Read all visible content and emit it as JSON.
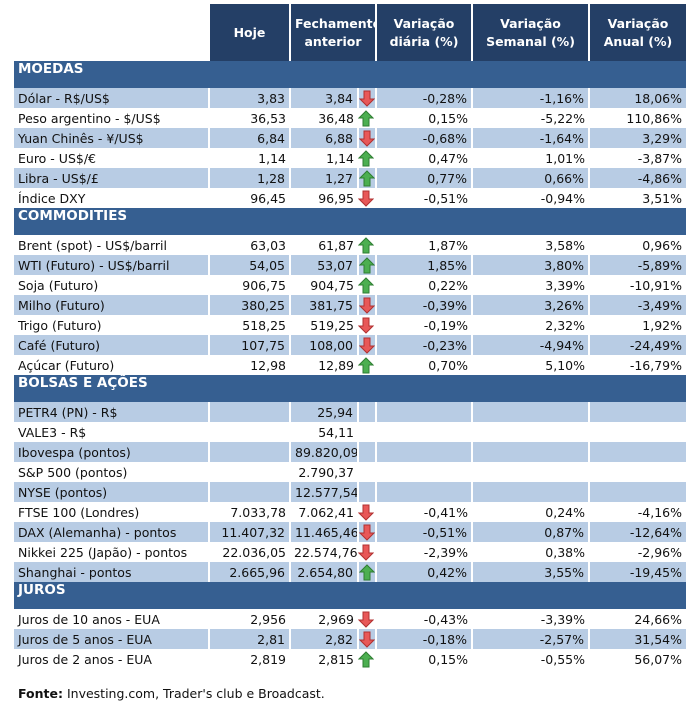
{
  "headers": [
    "Hoje",
    "Fechamento anterior",
    "Variação diária (%)",
    "Variação Semanal (%)",
    "Variação Anual (%)"
  ],
  "colors": {
    "header": "#243F66",
    "section": "#365F91",
    "shade": "#B8CCE4",
    "up": "#4CAF50",
    "down": "#E85858"
  },
  "sections": [
    {
      "title": "MOEDAS",
      "rows": [
        [
          "Dólar - R$/US$",
          "3,83",
          "3,84",
          "down",
          "-0,28%",
          "-1,16%",
          "18,06%"
        ],
        [
          "Peso argentino - $/US$",
          "36,53",
          "36,48",
          "up",
          "0,15%",
          "-5,22%",
          "110,86%"
        ],
        [
          "Yuan Chinês - ¥/US$",
          "6,84",
          "6,88",
          "down",
          "-0,68%",
          "-1,64%",
          "3,29%"
        ],
        [
          "Euro - US$/€",
          "1,14",
          "1,14",
          "up",
          "0,47%",
          "1,01%",
          "-3,87%"
        ],
        [
          "Libra - US$/£",
          "1,28",
          "1,27",
          "up",
          "0,77%",
          "0,66%",
          "-4,86%"
        ],
        [
          "Índice DXY",
          "96,45",
          "96,95",
          "down",
          "-0,51%",
          "-0,94%",
          "3,51%"
        ]
      ]
    },
    {
      "title": "COMMODITIES",
      "rows": [
        [
          "Brent (spot) - US$/barril",
          "63,03",
          "61,87",
          "up",
          "1,87%",
          "3,58%",
          "0,96%"
        ],
        [
          "WTI (Futuro) - US$/barril",
          "54,05",
          "53,07",
          "up",
          "1,85%",
          "3,80%",
          "-5,89%"
        ],
        [
          "Soja (Futuro)",
          "906,75",
          "904,75",
          "up",
          "0,22%",
          "3,39%",
          "-10,91%"
        ],
        [
          "Milho (Futuro)",
          "380,25",
          "381,75",
          "down",
          "-0,39%",
          "3,26%",
          "-3,49%"
        ],
        [
          "Trigo (Futuro)",
          "518,25",
          "519,25",
          "down",
          "-0,19%",
          "2,32%",
          "1,92%"
        ],
        [
          "Café (Futuro)",
          "107,75",
          "108,00",
          "down",
          "-0,23%",
          "-4,94%",
          "-24,49%"
        ],
        [
          "Açúcar (Futuro)",
          "12,98",
          "12,89",
          "up",
          "0,70%",
          "5,10%",
          "-16,79%"
        ]
      ]
    },
    {
      "title": "BOLSAS E AÇÕES",
      "rows": [
        [
          "PETR4 (PN) - R$",
          "",
          "25,94",
          "",
          "",
          "",
          ""
        ],
        [
          "VALE3 - R$",
          "",
          "54,11",
          "",
          "",
          "",
          ""
        ],
        [
          "Ibovespa (pontos)",
          "",
          "89.820,09",
          "",
          "",
          "",
          ""
        ],
        [
          "S&P 500 (pontos)",
          "",
          "2.790,37",
          "",
          "",
          "",
          ""
        ],
        [
          "NYSE (pontos)",
          "",
          "12.577,54",
          "",
          "",
          "",
          ""
        ],
        [
          "FTSE 100 (Londres)",
          "7.033,78",
          "7.062,41",
          "down",
          "-0,41%",
          "0,24%",
          "-4,16%"
        ],
        [
          "DAX (Alemanha) - pontos",
          "11.407,32",
          "11.465,46",
          "down",
          "-0,51%",
          "0,87%",
          "-12,64%"
        ],
        [
          "Nikkei 225 (Japão) - pontos",
          "22.036,05",
          "22.574,76",
          "down",
          "-2,39%",
          "0,38%",
          "-2,96%"
        ],
        [
          "Shanghai - pontos",
          "2.665,96",
          "2.654,80",
          "up",
          "0,42%",
          "3,55%",
          "-19,45%"
        ]
      ]
    },
    {
      "title": "JUROS",
      "rows": [
        [
          "Juros de 10 anos - EUA",
          "2,956",
          "2,969",
          "down",
          "-0,43%",
          "-3,39%",
          "24,66%"
        ],
        [
          "Juros de 5 anos - EUA",
          "2,81",
          "2,82",
          "down",
          "-0,18%",
          "-2,57%",
          "31,54%"
        ],
        [
          "Juros de 2 anos - EUA",
          "2,819",
          "2,815",
          "up",
          "0,15%",
          "-0,55%",
          "56,07%"
        ]
      ]
    }
  ],
  "footer": {
    "label": "Fonte:",
    "text": " Investing.com, Trader's club e Broadcast."
  }
}
